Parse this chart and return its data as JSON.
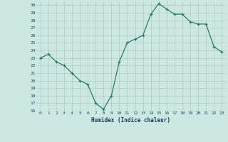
{
  "x": [
    0,
    1,
    2,
    3,
    4,
    5,
    6,
    7,
    8,
    9,
    10,
    11,
    12,
    13,
    14,
    15,
    16,
    17,
    18,
    19,
    20,
    21,
    22,
    23
  ],
  "y": [
    23.0,
    23.5,
    22.5,
    22.0,
    21.0,
    20.0,
    19.5,
    17.0,
    16.2,
    18.0,
    22.5,
    25.0,
    25.5,
    26.0,
    28.8,
    30.2,
    29.5,
    28.8,
    28.8,
    27.8,
    27.5,
    27.5,
    24.5,
    23.8
  ],
  "xlabel": "Humidex (Indice chaleur)",
  "xlim": [
    -0.5,
    23.5
  ],
  "ylim": [
    16,
    30.5
  ],
  "yticks": [
    16,
    17,
    18,
    19,
    20,
    21,
    22,
    23,
    24,
    25,
    26,
    27,
    28,
    29,
    30
  ],
  "xticks": [
    0,
    1,
    2,
    3,
    4,
    5,
    6,
    7,
    8,
    9,
    10,
    11,
    12,
    13,
    14,
    15,
    16,
    17,
    18,
    19,
    20,
    21,
    22,
    23
  ],
  "line_color": "#2d7a65",
  "bg_color": "#cce8e0",
  "grid_color": "#aaccc4",
  "xlabel_color": "#1a3a5c",
  "tick_label_color": "#1a4a6b"
}
